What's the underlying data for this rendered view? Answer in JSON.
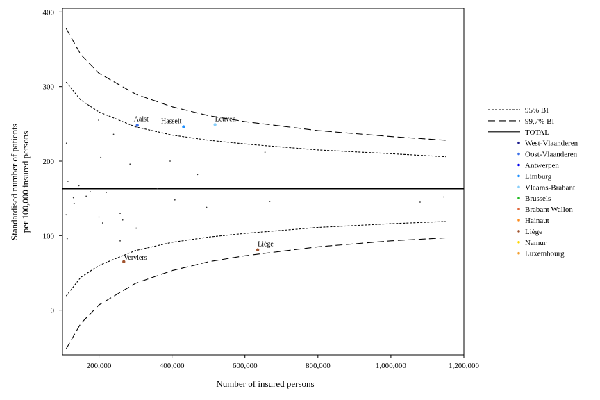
{
  "chart_data": {
    "type": "scatter",
    "title": "",
    "xlabel": "Number of insured persons",
    "ylabel_line1": "Standardised number of patients",
    "ylabel_line2": "per 100,000 insured persons",
    "xlim": [
      100000,
      1200000
    ],
    "ylim": [
      -60,
      405
    ],
    "xticks": [
      200000,
      400000,
      600000,
      800000,
      1000000,
      1200000
    ],
    "xtick_labels": [
      "200,000",
      "400,000",
      "600,000",
      "800,000",
      "1,000,000",
      "1,200,000"
    ],
    "yticks": [
      0,
      100,
      200,
      300,
      400
    ],
    "ytick_labels": [
      "0",
      "100",
      "200",
      "300",
      "400"
    ],
    "grid": false,
    "legend_position": "right",
    "total_value": 163,
    "reference_lines": [
      {
        "name": "95% BI",
        "style": "dotted",
        "upper": [
          [
            110000,
            306
          ],
          [
            150000,
            282
          ],
          [
            200000,
            266
          ],
          [
            300000,
            246
          ],
          [
            400000,
            235
          ],
          [
            500000,
            228
          ],
          [
            600000,
            223
          ],
          [
            800000,
            215
          ],
          [
            1000000,
            210
          ],
          [
            1150000,
            206
          ]
        ],
        "lower": [
          [
            110000,
            19
          ],
          [
            150000,
            44
          ],
          [
            200000,
            60
          ],
          [
            300000,
            80
          ],
          [
            400000,
            91
          ],
          [
            500000,
            98
          ],
          [
            600000,
            103
          ],
          [
            800000,
            111
          ],
          [
            1000000,
            116
          ],
          [
            1150000,
            119
          ]
        ]
      },
      {
        "name": "99,7% BI",
        "style": "dashed",
        "upper": [
          [
            110000,
            378
          ],
          [
            150000,
            343
          ],
          [
            200000,
            318
          ],
          [
            300000,
            290
          ],
          [
            400000,
            273
          ],
          [
            500000,
            261
          ],
          [
            600000,
            253
          ],
          [
            800000,
            241
          ],
          [
            1000000,
            233
          ],
          [
            1150000,
            228
          ]
        ],
        "lower": [
          [
            110000,
            -52
          ],
          [
            150000,
            -18
          ],
          [
            200000,
            7
          ],
          [
            300000,
            36
          ],
          [
            400000,
            53
          ],
          [
            500000,
            65
          ],
          [
            600000,
            73
          ],
          [
            800000,
            85
          ],
          [
            1000000,
            93
          ],
          [
            1150000,
            97
          ]
        ]
      }
    ],
    "series": [
      {
        "name": "West-Vlaanderen",
        "color": "#1a1a8c",
        "values": []
      },
      {
        "name": "Oost-Vlaanderen",
        "color": "#3a6fe8",
        "values": [
          [
            305000,
            248
          ]
        ]
      },
      {
        "name": "Antwerpen",
        "color": "#0000ee",
        "values": []
      },
      {
        "name": "Limburg",
        "color": "#1e90ff",
        "values": [
          [
            432000,
            246
          ]
        ]
      },
      {
        "name": "Vlaams-Brabant",
        "color": "#87cefa",
        "values": [
          [
            518000,
            249
          ]
        ]
      },
      {
        "name": "Brussels",
        "color": "#22bb22",
        "values": []
      },
      {
        "name": "Brabant Wallon",
        "color": "#e0663a",
        "values": []
      },
      {
        "name": "Hainaut",
        "color": "#ff8c1a",
        "values": []
      },
      {
        "name": "Liège",
        "color": "#a0522d",
        "values": [
          [
            268000,
            65
          ],
          [
            635000,
            81
          ]
        ]
      },
      {
        "name": "Namur",
        "color": "#ffd700",
        "values": []
      },
      {
        "name": "Luxembourg",
        "color": "#f4a030",
        "values": []
      }
    ],
    "background_points": [
      [
        111000,
        224
      ],
      [
        115000,
        173
      ],
      [
        130000,
        151
      ],
      [
        132000,
        143
      ],
      [
        145000,
        167
      ],
      [
        165000,
        153
      ],
      [
        199000,
        255
      ],
      [
        205000,
        205
      ],
      [
        220000,
        158
      ],
      [
        240000,
        236
      ],
      [
        200000,
        125
      ],
      [
        210000,
        117
      ],
      [
        258000,
        130
      ],
      [
        265000,
        121
      ],
      [
        258000,
        93
      ],
      [
        285000,
        196
      ],
      [
        302000,
        110
      ],
      [
        395000,
        200
      ],
      [
        360000,
        163
      ],
      [
        408000,
        148
      ],
      [
        470000,
        182
      ],
      [
        495000,
        138
      ],
      [
        655000,
        212
      ],
      [
        668000,
        146
      ],
      [
        1080000,
        145
      ],
      [
        1145000,
        152
      ],
      [
        110000,
        128
      ],
      [
        113000,
        96
      ],
      [
        176000,
        159
      ]
    ],
    "annotations": [
      {
        "text": "Aalst",
        "x": 305000,
        "y": 248
      },
      {
        "text": "Hasselt",
        "x": 432000,
        "y": 246
      },
      {
        "text": "Leuven",
        "x": 518000,
        "y": 249
      },
      {
        "text": "Verviers",
        "x": 268000,
        "y": 65
      },
      {
        "text": "Liège",
        "x": 635000,
        "y": 81
      }
    ],
    "legend": [
      "95% BI",
      "99,7% BI",
      "TOTAL",
      "West-Vlaanderen",
      "Oost-Vlaanderen",
      "Antwerpen",
      "Limburg",
      "Vlaams-Brabant",
      "Brussels",
      "Brabant Wallon",
      "Hainaut",
      "Liège",
      "Namur",
      "Luxembourg"
    ]
  }
}
